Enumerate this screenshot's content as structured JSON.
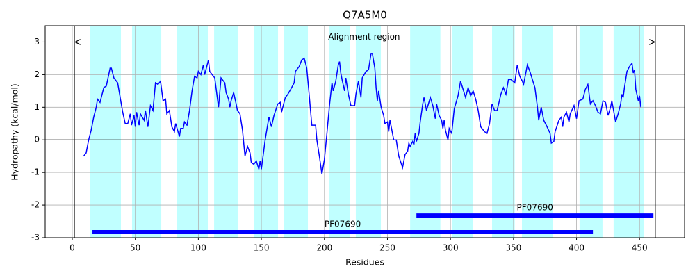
{
  "chart_data": {
    "type": "line",
    "title": "Q7A5M0",
    "x_label": "Residues",
    "y_label": "Hydropathy (kcal/mol)",
    "xlim": [
      -21.5,
      485.7
    ],
    "ylim": [
      -3,
      3.5
    ],
    "xticks": [
      0,
      50,
      100,
      150,
      200,
      250,
      300,
      350,
      400,
      450
    ],
    "yticks": [
      -3,
      -2,
      -1,
      0,
      1,
      2,
      3
    ],
    "grid": true,
    "series": [
      {
        "color": "#0000ff",
        "x": [
          9,
          11,
          13,
          15,
          17,
          19,
          20,
          22,
          25,
          27,
          30,
          31,
          33,
          36,
          38,
          40,
          42,
          44,
          46,
          47,
          49,
          50,
          51,
          53,
          54,
          57,
          58,
          60,
          62,
          64,
          66,
          68,
          70,
          72,
          74,
          75,
          77,
          79,
          81,
          82,
          85,
          86,
          88,
          89,
          91,
          93,
          95,
          97,
          99,
          100,
          102,
          104,
          105,
          108,
          109,
          111,
          113,
          114,
          116,
          118,
          121,
          122,
          124,
          125,
          126,
          128,
          130,
          131,
          133,
          135,
          137,
          139,
          141,
          142,
          144,
          146,
          148,
          149,
          150,
          152,
          153,
          156,
          158,
          160,
          163,
          165,
          166,
          169,
          171,
          174,
          176,
          177,
          180,
          182,
          184,
          186,
          188,
          190,
          193,
          194,
          196,
          198,
          200,
          202,
          204,
          206,
          207,
          209,
          211,
          212,
          213,
          214,
          216,
          217,
          219,
          221,
          224,
          225,
          227,
          229,
          230,
          233,
          235,
          237,
          238,
          240,
          241,
          242,
          243,
          245,
          247,
          248,
          250,
          251,
          252,
          255,
          257,
          259,
          262,
          264,
          266,
          267,
          268,
          270,
          271,
          272,
          273,
          275,
          276,
          278,
          279,
          281,
          284,
          286,
          288,
          289,
          291,
          293,
          294,
          295,
          296,
          298,
          299,
          301,
          303,
          306,
          308,
          310,
          312,
          314,
          316,
          318,
          320,
          322,
          324,
          327,
          329,
          331,
          333,
          335,
          337,
          340,
          342,
          344,
          346,
          348,
          351,
          353,
          355,
          357,
          358,
          361,
          363,
          365,
          367,
          369,
          370,
          372,
          374,
          376,
          379,
          380,
          382,
          383,
          386,
          388,
          389,
          390,
          392,
          394,
          395,
          398,
          399,
          400,
          402,
          405,
          407,
          409,
          411,
          413,
          415,
          417,
          419,
          421,
          423,
          425,
          427,
          428,
          431,
          433,
          435,
          436,
          437,
          438,
          440,
          442,
          444,
          445,
          446,
          447,
          449,
          450,
          451
        ],
        "values": [
          -0.5,
          -0.4,
          0.0,
          0.3,
          0.7,
          1.0,
          1.25,
          1.15,
          1.6,
          1.65,
          2.2,
          2.2,
          1.9,
          1.75,
          1.3,
          0.85,
          0.5,
          0.5,
          0.8,
          0.45,
          0.75,
          0.4,
          0.85,
          0.45,
          0.8,
          0.6,
          0.9,
          0.4,
          1.05,
          0.9,
          1.75,
          1.7,
          1.8,
          1.2,
          1.25,
          0.8,
          0.9,
          0.4,
          0.25,
          0.5,
          0.1,
          0.35,
          0.35,
          0.55,
          0.45,
          0.9,
          1.5,
          1.95,
          1.9,
          2.1,
          2.0,
          2.3,
          2.0,
          2.45,
          2.1,
          2.0,
          1.9,
          1.6,
          1.0,
          1.9,
          1.75,
          1.45,
          1.25,
          1.0,
          1.2,
          1.45,
          1.1,
          0.9,
          0.8,
          0.3,
          -0.5,
          -0.2,
          -0.4,
          -0.7,
          -0.75,
          -0.65,
          -0.9,
          -0.65,
          -0.9,
          -0.3,
          0.0,
          0.7,
          0.4,
          0.75,
          1.1,
          1.15,
          0.85,
          1.3,
          1.4,
          1.6,
          1.75,
          2.1,
          2.25,
          2.45,
          2.5,
          2.2,
          1.35,
          0.45,
          0.45,
          0.0,
          -0.5,
          -1.05,
          -0.6,
          0.2,
          1.05,
          1.75,
          1.5,
          1.8,
          2.3,
          2.4,
          2.05,
          1.85,
          1.5,
          1.9,
          1.4,
          1.05,
          1.05,
          1.4,
          1.8,
          1.3,
          1.9,
          2.1,
          2.15,
          2.65,
          2.65,
          2.2,
          1.6,
          1.2,
          1.5,
          1.0,
          0.75,
          0.5,
          0.55,
          0.25,
          0.6,
          0.0,
          0.0,
          -0.5,
          -0.85,
          -0.45,
          -0.35,
          -0.1,
          -0.2,
          -0.05,
          -0.15,
          0.2,
          -0.05,
          0.2,
          0.55,
          1.1,
          1.3,
          0.9,
          1.3,
          1.05,
          0.65,
          1.1,
          0.75,
          0.6,
          0.35,
          0.6,
          0.3,
          0.0,
          0.35,
          0.2,
          0.95,
          1.35,
          1.8,
          1.55,
          1.3,
          1.6,
          1.35,
          1.5,
          1.25,
          0.9,
          0.4,
          0.25,
          0.2,
          0.5,
          1.1,
          0.9,
          0.9,
          1.4,
          1.6,
          1.4,
          1.85,
          1.85,
          1.75,
          2.3,
          1.95,
          1.8,
          1.7,
          2.3,
          2.1,
          1.85,
          1.6,
          1.0,
          0.6,
          1.0,
          0.6,
          0.45,
          0.2,
          -0.1,
          -0.05,
          0.25,
          0.6,
          0.7,
          0.4,
          0.7,
          0.85,
          0.55,
          0.8,
          1.05,
          0.85,
          0.65,
          1.2,
          1.25,
          1.55,
          1.7,
          1.1,
          1.2,
          1.05,
          0.85,
          0.8,
          1.2,
          1.15,
          0.75,
          1.0,
          1.2,
          0.55,
          0.8,
          1.1,
          1.4,
          1.3,
          1.6,
          2.1,
          2.25,
          2.35,
          2.05,
          2.15,
          1.55,
          1.2,
          1.35,
          1.0
        ]
      }
    ],
    "spans": [
      [
        14.3,
        38.6
      ],
      [
        47.4,
        70.6
      ],
      [
        83.2,
        107.5
      ],
      [
        112.5,
        131.2
      ],
      [
        144.4,
        163.2
      ],
      [
        168.1,
        186.9
      ],
      [
        204,
        220
      ],
      [
        224.9,
        244.8
      ],
      [
        268,
        292
      ],
      [
        301,
        318
      ],
      [
        333,
        351
      ],
      [
        356.7,
        381
      ],
      [
        402.4,
        420.6
      ],
      [
        429.4,
        453.7
      ]
    ],
    "span_color": "#c0ffff",
    "hline": 0,
    "vlines": [
      1.7,
      462.5
    ],
    "annotation": {
      "text": "Alignment region",
      "x": 231.5,
      "y": 3.15,
      "arrow_x": [
        1.7,
        462.5
      ],
      "arrow_y": 3
    },
    "domain_color": "#0000ff",
    "domains": [
      {
        "name": "PF07690",
        "start": 16,
        "end": 413,
        "y": -2.83
      },
      {
        "name": "PF07690",
        "start": 273,
        "end": 461,
        "y": -2.32
      }
    ]
  }
}
